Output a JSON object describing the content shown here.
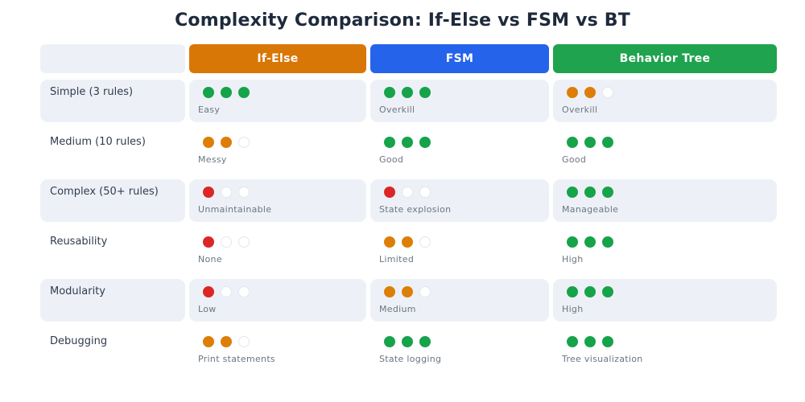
{
  "title": "Complexity Comparison: If-Else vs FSM vs BT",
  "header": {
    "columns": [
      {
        "label": "If-Else",
        "color": "#d97706"
      },
      {
        "label": "FSM",
        "color": "#2563eb"
      },
      {
        "label": "Behavior Tree",
        "color": "#1fa34e"
      }
    ]
  },
  "colors": {
    "dot_green": "#16a34a",
    "dot_orange": "#dd7e06",
    "dot_red": "#dc2626",
    "dot_empty_border": "#e2e7ee",
    "row_alt_bg": "#edf1f7",
    "title_text": "#1e2a3c",
    "row_label_text": "#313c4e",
    "note_text": "#6b7682"
  },
  "chart_data": {
    "type": "table",
    "title": "Complexity Comparison: If-Else vs FSM vs BT",
    "columns": [
      "If-Else",
      "FSM",
      "Behavior Tree"
    ],
    "max_score": 3,
    "legend_note": "scores are filled dots out of 3",
    "rows": [
      {
        "criterion": "Simple (3 rules)",
        "cells": [
          {
            "score": 3,
            "color": "green",
            "label": "Easy"
          },
          {
            "score": 3,
            "color": "green",
            "label": "Overkill"
          },
          {
            "score": 2,
            "color": "orange",
            "label": "Overkill"
          }
        ]
      },
      {
        "criterion": "Medium (10 rules)",
        "cells": [
          {
            "score": 2,
            "color": "orange",
            "label": "Messy"
          },
          {
            "score": 3,
            "color": "green",
            "label": "Good"
          },
          {
            "score": 3,
            "color": "green",
            "label": "Good"
          }
        ]
      },
      {
        "criterion": "Complex (50+ rules)",
        "cells": [
          {
            "score": 1,
            "color": "red",
            "label": "Unmaintainable"
          },
          {
            "score": 1,
            "color": "red",
            "label": "State explosion"
          },
          {
            "score": 3,
            "color": "green",
            "label": "Manageable"
          }
        ]
      },
      {
        "criterion": "Reusability",
        "cells": [
          {
            "score": 1,
            "color": "red",
            "label": "None"
          },
          {
            "score": 2,
            "color": "orange",
            "label": "Limited"
          },
          {
            "score": 3,
            "color": "green",
            "label": "High"
          }
        ]
      },
      {
        "criterion": "Modularity",
        "cells": [
          {
            "score": 1,
            "color": "red",
            "label": "Low"
          },
          {
            "score": 2,
            "color": "orange",
            "label": "Medium"
          },
          {
            "score": 3,
            "color": "green",
            "label": "High"
          }
        ]
      },
      {
        "criterion": "Debugging",
        "cells": [
          {
            "score": 2,
            "color": "orange",
            "label": "Print statements"
          },
          {
            "score": 3,
            "color": "green",
            "label": "State logging"
          },
          {
            "score": 3,
            "color": "green",
            "label": "Tree visualization"
          }
        ]
      }
    ]
  }
}
